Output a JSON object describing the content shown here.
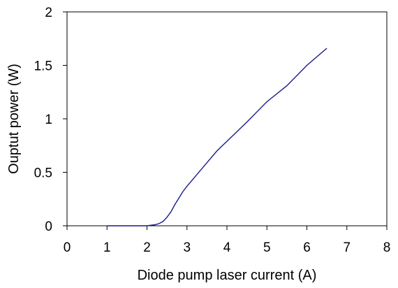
{
  "chart_data": {
    "type": "line",
    "title": "",
    "xlabel": "Diode pump laser current (A)",
    "ylabel": "Ouptut power (W)",
    "xlim": [
      0,
      8
    ],
    "ylim": [
      0,
      2
    ],
    "xticks": [
      0,
      1,
      2,
      3,
      4,
      5,
      6,
      7,
      8
    ],
    "yticks": [
      0,
      0.5,
      1,
      1.5,
      2
    ],
    "ytick_labels": [
      "0",
      "0.5",
      "1",
      "1.5",
      "2"
    ],
    "grid": false,
    "legend": "none",
    "series": [
      {
        "color": "#1a1a8c",
        "x": [
          1.0,
          1.5,
          2.0,
          2.1,
          2.2,
          2.3,
          2.4,
          2.5,
          2.6,
          2.7,
          2.8,
          2.9,
          3.0,
          3.25,
          3.5,
          3.75,
          4.0,
          4.5,
          5.0,
          5.5,
          6.0,
          6.5
        ],
        "y": [
          0.0,
          0.0,
          0.0,
          0.005,
          0.01,
          0.02,
          0.04,
          0.08,
          0.13,
          0.2,
          0.26,
          0.32,
          0.37,
          0.48,
          0.59,
          0.7,
          0.79,
          0.97,
          1.16,
          1.31,
          1.5,
          1.66
        ]
      }
    ]
  }
}
